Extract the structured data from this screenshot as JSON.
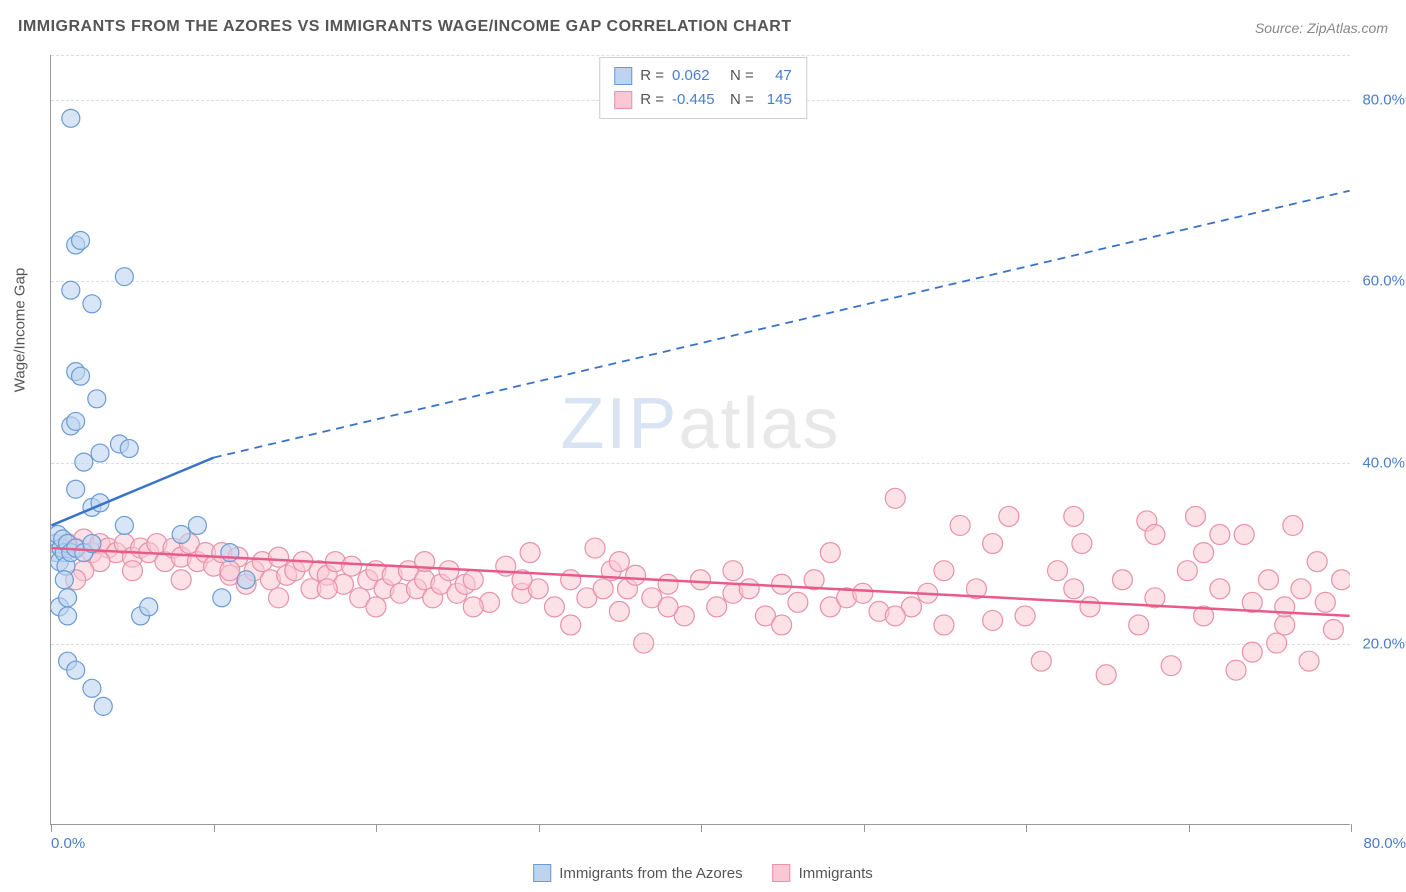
{
  "title": "IMMIGRANTS FROM THE AZORES VS IMMIGRANTS WAGE/INCOME GAP CORRELATION CHART",
  "source_label": "Source: ZipAtlas.com",
  "y_axis_label": "Wage/Income Gap",
  "watermark": {
    "part1": "ZIP",
    "part2": "atlas"
  },
  "chart": {
    "type": "scatter",
    "xlim": [
      0,
      80
    ],
    "ylim": [
      0,
      85
    ],
    "x_ticks": [
      0,
      10,
      20,
      30,
      40,
      50,
      60,
      70,
      80
    ],
    "y_ticks": [
      20,
      40,
      60,
      80
    ],
    "x_tick_labels": {
      "0": "0.0%",
      "80": "80.0%"
    },
    "y_tick_labels": {
      "20": "20.0%",
      "40": "40.0%",
      "60": "60.0%",
      "80": "80.0%"
    },
    "background_color": "#ffffff",
    "grid_color": "#dddddd",
    "axis_color": "#999999",
    "tick_label_color": "#4a7ec9",
    "series": [
      {
        "label": "Immigrants from the Azores",
        "fill_color": "#bcd4f0",
        "stroke_color": "#6b9bd4",
        "marker_radius": 9,
        "marker_opacity": 0.6,
        "R": "0.062",
        "N": "47",
        "trend": {
          "x1": 0,
          "y1": 33,
          "x2": 10,
          "y2": 40.5,
          "dash_x2": 80,
          "dash_y2": 70,
          "color": "#3872c9",
          "width": 2.5
        },
        "points": [
          [
            0.2,
            31
          ],
          [
            0.3,
            30
          ],
          [
            0.4,
            32
          ],
          [
            0.5,
            29
          ],
          [
            0.6,
            30.5
          ],
          [
            0.7,
            31.5
          ],
          [
            0.8,
            30
          ],
          [
            0.9,
            28.5
          ],
          [
            1.0,
            31
          ],
          [
            1.2,
            30
          ],
          [
            0.5,
            24
          ],
          [
            0.8,
            27
          ],
          [
            1.5,
            30.5
          ],
          [
            2.0,
            30
          ],
          [
            2.5,
            31
          ],
          [
            1.0,
            25
          ],
          [
            1.0,
            23
          ],
          [
            1.2,
            78
          ],
          [
            1.5,
            64
          ],
          [
            1.8,
            64.5
          ],
          [
            1.2,
            59
          ],
          [
            2.5,
            57.5
          ],
          [
            4.5,
            60.5
          ],
          [
            1.5,
            50
          ],
          [
            1.8,
            49.5
          ],
          [
            2.8,
            47
          ],
          [
            1.2,
            44
          ],
          [
            1.5,
            44.5
          ],
          [
            2.0,
            40
          ],
          [
            4.2,
            42
          ],
          [
            4.8,
            41.5
          ],
          [
            3.0,
            41
          ],
          [
            1.5,
            37
          ],
          [
            2.5,
            35
          ],
          [
            3.0,
            35.5
          ],
          [
            4.5,
            33
          ],
          [
            1.0,
            18
          ],
          [
            1.5,
            17
          ],
          [
            2.5,
            15
          ],
          [
            3.2,
            13
          ],
          [
            5.5,
            23
          ],
          [
            6.0,
            24
          ],
          [
            8.0,
            32
          ],
          [
            9.0,
            33
          ],
          [
            10.5,
            25
          ],
          [
            11.0,
            30
          ],
          [
            12.0,
            27
          ]
        ]
      },
      {
        "label": "Immigrants",
        "fill_color": "#f9c8d4",
        "stroke_color": "#e891a8",
        "marker_radius": 10,
        "marker_opacity": 0.55,
        "R": "-0.445",
        "N": "145",
        "trend": {
          "x1": 0,
          "y1": 30.5,
          "x2": 80,
          "y2": 23,
          "color": "#e85a8a",
          "width": 2.5
        },
        "points": [
          [
            1,
            31
          ],
          [
            1.5,
            30.5
          ],
          [
            2,
            31.5
          ],
          [
            2.5,
            30
          ],
          [
            3,
            31
          ],
          [
            3.5,
            30.5
          ],
          [
            4,
            30
          ],
          [
            4.5,
            31
          ],
          [
            5,
            29.5
          ],
          [
            5.5,
            30.5
          ],
          [
            6,
            30
          ],
          [
            6.5,
            31
          ],
          [
            7,
            29
          ],
          [
            7.5,
            30.5
          ],
          [
            8,
            29.5
          ],
          [
            8.5,
            31
          ],
          [
            9,
            29
          ],
          [
            9.5,
            30
          ],
          [
            10,
            28.5
          ],
          [
            10.5,
            30
          ],
          [
            11,
            27.5
          ],
          [
            11.5,
            29.5
          ],
          [
            12,
            26.5
          ],
          [
            12.5,
            28
          ],
          [
            13,
            29
          ],
          [
            13.5,
            27
          ],
          [
            14,
            29.5
          ],
          [
            14.5,
            27.5
          ],
          [
            15,
            28
          ],
          [
            15.5,
            29
          ],
          [
            16,
            26
          ],
          [
            16.5,
            28
          ],
          [
            17,
            27.5
          ],
          [
            17.5,
            29
          ],
          [
            18,
            26.5
          ],
          [
            18.5,
            28.5
          ],
          [
            19,
            25
          ],
          [
            19.5,
            27
          ],
          [
            20,
            28
          ],
          [
            20.5,
            26
          ],
          [
            21,
            27.5
          ],
          [
            21.5,
            25.5
          ],
          [
            22,
            28
          ],
          [
            22.5,
            26
          ],
          [
            23,
            27
          ],
          [
            23.5,
            25
          ],
          [
            24,
            26.5
          ],
          [
            24.5,
            28
          ],
          [
            25,
            25.5
          ],
          [
            25.5,
            26.5
          ],
          [
            26,
            27
          ],
          [
            27,
            24.5
          ],
          [
            28,
            28.5
          ],
          [
            29,
            25.5
          ],
          [
            29.5,
            30
          ],
          [
            30,
            26
          ],
          [
            31,
            24
          ],
          [
            32,
            27
          ],
          [
            33,
            25
          ],
          [
            33.5,
            30.5
          ],
          [
            34,
            26
          ],
          [
            34.5,
            28
          ],
          [
            35,
            23.5
          ],
          [
            35.5,
            26
          ],
          [
            36,
            27.5
          ],
          [
            36.5,
            20
          ],
          [
            37,
            25
          ],
          [
            38,
            26.5
          ],
          [
            39,
            23
          ],
          [
            40,
            27
          ],
          [
            41,
            24
          ],
          [
            42,
            25.5
          ],
          [
            43,
            26
          ],
          [
            44,
            23
          ],
          [
            45,
            26.5
          ],
          [
            46,
            24.5
          ],
          [
            47,
            27
          ],
          [
            48,
            24
          ],
          [
            49,
            25
          ],
          [
            50,
            25.5
          ],
          [
            51,
            23.5
          ],
          [
            52,
            36
          ],
          [
            53,
            24
          ],
          [
            54,
            25.5
          ],
          [
            55,
            22
          ],
          [
            56,
            33
          ],
          [
            57,
            26
          ],
          [
            58,
            22.5
          ],
          [
            59,
            34
          ],
          [
            60,
            23
          ],
          [
            61,
            18
          ],
          [
            62,
            28
          ],
          [
            63,
            26
          ],
          [
            63.5,
            31
          ],
          [
            64,
            24
          ],
          [
            65,
            16.5
          ],
          [
            66,
            27
          ],
          [
            67,
            22
          ],
          [
            67.5,
            33.5
          ],
          [
            68,
            25
          ],
          [
            69,
            17.5
          ],
          [
            70,
            28
          ],
          [
            70.5,
            34
          ],
          [
            71,
            23
          ],
          [
            72,
            26
          ],
          [
            73,
            17
          ],
          [
            73.5,
            32
          ],
          [
            74,
            24.5
          ],
          [
            75,
            27
          ],
          [
            75.5,
            20
          ],
          [
            76,
            22
          ],
          [
            76.5,
            33
          ],
          [
            77,
            26
          ],
          [
            77.5,
            18
          ],
          [
            78,
            29
          ],
          [
            78.5,
            24.5
          ],
          [
            79,
            21.5
          ],
          [
            79.5,
            27
          ],
          [
            63,
            34
          ],
          [
            58,
            31
          ],
          [
            52,
            23
          ],
          [
            55,
            28
          ],
          [
            48,
            30
          ],
          [
            45,
            22
          ],
          [
            42,
            28
          ],
          [
            38,
            24
          ],
          [
            35,
            29
          ],
          [
            32,
            22
          ],
          [
            29,
            27
          ],
          [
            26,
            24
          ],
          [
            23,
            29
          ],
          [
            20,
            24
          ],
          [
            17,
            26
          ],
          [
            14,
            25
          ],
          [
            11,
            28
          ],
          [
            8,
            27
          ],
          [
            5,
            28
          ],
          [
            3,
            29
          ],
          [
            2,
            28
          ],
          [
            1.5,
            27
          ],
          [
            68,
            32
          ],
          [
            71,
            30
          ],
          [
            74,
            19
          ],
          [
            76,
            24
          ],
          [
            72,
            32
          ]
        ]
      }
    ]
  },
  "legend_top": {
    "rows": [
      {
        "swatch_fill": "#bcd4f0",
        "swatch_stroke": "#6b9bd4",
        "R_label": "R =",
        "R_val": "0.062",
        "N_label": "N =",
        "N_val": "47"
      },
      {
        "swatch_fill": "#f9c8d4",
        "swatch_stroke": "#e891a8",
        "R_label": "R =",
        "R_val": "-0.445",
        "N_label": "N =",
        "N_val": "145"
      }
    ]
  },
  "legend_bottom": [
    {
      "swatch_fill": "#bcd4f0",
      "swatch_stroke": "#6b9bd4",
      "label": "Immigrants from the Azores"
    },
    {
      "swatch_fill": "#f9c8d4",
      "swatch_stroke": "#e891a8",
      "label": "Immigrants"
    }
  ]
}
